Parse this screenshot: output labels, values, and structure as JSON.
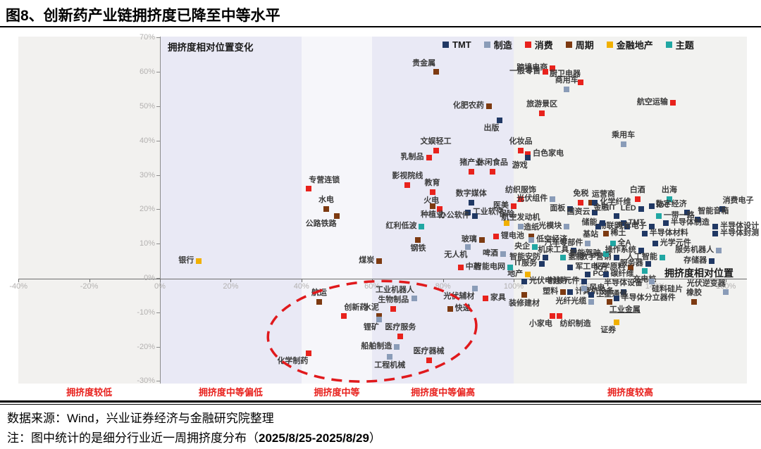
{
  "title": "图8、创新药产业链拥挤度已降至中等水平",
  "footer": {
    "source": "数据来源：Wind，兴业证券经济与金融研究院整理",
    "note_prefix": "注：图中统计的是细分行业近一周拥挤度分布（",
    "note_date": "2025/8/25-2025/8/29",
    "note_suffix": "）"
  },
  "chart_data": {
    "type": "scatter",
    "title": "创新药产业链拥挤度已降至中等水平",
    "xlabel": "拥挤度相对位置",
    "ylabel": "拥挤度相对位置变化",
    "xlim": [
      -42,
      170
    ],
    "ylim": [
      -31,
      70
    ],
    "x_ticks": [
      -40,
      -20,
      0,
      20,
      40,
      60,
      80,
      100,
      120,
      140,
      160
    ],
    "y_ticks": [
      70,
      60,
      50,
      40,
      30,
      20,
      10,
      0,
      -10,
      -20,
      -30
    ],
    "legend_position": "top-right",
    "categories": [
      {
        "key": "tmt",
        "label": "TMT",
        "color": "#203864"
      },
      {
        "key": "mfg",
        "label": "制造",
        "color": "#8a9cb8"
      },
      {
        "key": "cons",
        "label": "消费",
        "color": "#e8221c"
      },
      {
        "key": "cyc",
        "label": "周期",
        "color": "#7d3a11"
      },
      {
        "key": "fin",
        "label": "金融地产",
        "color": "#f1b000"
      },
      {
        "key": "theme",
        "label": "主题",
        "color": "#21a7a3"
      }
    ],
    "zones": [
      {
        "label": "拥挤度较低",
        "from": -40,
        "to": 0,
        "bg": "#f2f1ef"
      },
      {
        "label": "拥挤度中等偏低",
        "from": 0,
        "to": 40,
        "bg": "#e9e9f5"
      },
      {
        "label": "拥挤度中等",
        "from": 40,
        "to": 60,
        "bg": "#f6f6fa"
      },
      {
        "label": "拥挤度中等偏高",
        "from": 60,
        "to": 100,
        "bg": "#e9e9f5"
      },
      {
        "label": "拥挤度较高",
        "from": 100,
        "to": 166,
        "bg": "#f2f2f0"
      }
    ],
    "highlight_ellipse": {
      "cx": 60,
      "cy": -15.5,
      "rx": 29.5,
      "ry": 14.5,
      "color": "#e0191c"
    },
    "points": [
      {
        "l": "贵金属",
        "c": "cyc",
        "x": 78,
        "y": 60,
        "p": "al"
      },
      {
        "l": "跨境电商",
        "c": "cons",
        "x": 111,
        "y": 61,
        "p": "l"
      },
      {
        "l": "一般零售",
        "c": "cons",
        "x": 109,
        "y": 60,
        "p": "l"
      },
      {
        "l": "商用车",
        "c": "mfg",
        "x": 115,
        "y": 55,
        "p": "a"
      },
      {
        "l": "厨卫电器",
        "c": "cons",
        "x": 119,
        "y": 57,
        "p": "al"
      },
      {
        "l": "旅游景区",
        "c": "cons",
        "x": 108,
        "y": 48,
        "p": "a"
      },
      {
        "l": "化肥农药",
        "c": "cyc",
        "x": 93,
        "y": 50,
        "p": "l"
      },
      {
        "l": "出版",
        "c": "tmt",
        "x": 96,
        "y": 46,
        "p": "bl"
      },
      {
        "l": "航空运输",
        "c": "cons",
        "x": 145,
        "y": 51,
        "p": "l"
      },
      {
        "l": "乘用车",
        "c": "mfg",
        "x": 131,
        "y": 39,
        "p": "a"
      },
      {
        "l": "文娱轻工",
        "c": "cons",
        "x": 78,
        "y": 37,
        "p": "a"
      },
      {
        "l": "乳制品",
        "c": "cons",
        "x": 76,
        "y": 35,
        "p": "l"
      },
      {
        "l": "化妆品",
        "c": "cons",
        "x": 102,
        "y": 37,
        "p": "a"
      },
      {
        "l": "白色家电",
        "c": "cons",
        "x": 104,
        "y": 36,
        "p": "r"
      },
      {
        "l": "游戏",
        "c": "tmt",
        "x": 104,
        "y": 35,
        "p": "bl"
      },
      {
        "l": "猪产业",
        "c": "cons",
        "x": 88,
        "y": 31,
        "p": "a"
      },
      {
        "l": "休闲食品",
        "c": "cons",
        "x": 94,
        "y": 31,
        "p": "a"
      },
      {
        "l": "影视院线",
        "c": "cons",
        "x": 70,
        "y": 27,
        "p": "a"
      },
      {
        "l": "专营连锁",
        "c": "cons",
        "x": 42,
        "y": 26,
        "p": "ar"
      },
      {
        "l": "水电",
        "c": "cyc",
        "x": 47,
        "y": 20,
        "p": "a"
      },
      {
        "l": "公路铁路",
        "c": "cyc",
        "x": 50,
        "y": 18,
        "p": "bl"
      },
      {
        "l": "教育",
        "c": "cons",
        "x": 77,
        "y": 25,
        "p": "a"
      },
      {
        "l": "数字媒体",
        "c": "tmt",
        "x": 88,
        "y": 22,
        "p": "a"
      },
      {
        "l": "火电",
        "c": "cons",
        "x": 79,
        "y": 20,
        "p": "al"
      },
      {
        "l": "种植业",
        "c": "cyc",
        "x": 77,
        "y": 21,
        "p": "b"
      },
      {
        "l": "红利低波",
        "c": "theme",
        "x": 74,
        "y": 15,
        "p": "l"
      },
      {
        "l": "纺织服饰",
        "c": "cons",
        "x": 102,
        "y": 23,
        "p": "a"
      },
      {
        "l": "医美",
        "c": "cons",
        "x": 100,
        "y": 21,
        "p": "l"
      },
      {
        "l": "光伏组件",
        "c": "mfg",
        "x": 111,
        "y": 23,
        "p": "l"
      },
      {
        "l": "免税",
        "c": "cons",
        "x": 119,
        "y": 22,
        "p": "a"
      },
      {
        "l": "运营商",
        "c": "cyc",
        "x": 122,
        "y": 22,
        "p": "ar"
      },
      {
        "l": "白酒",
        "c": "cons",
        "x": 135,
        "y": 23,
        "p": "a"
      },
      {
        "l": "出海",
        "c": "theme",
        "x": 144,
        "y": 23,
        "p": "a"
      },
      {
        "l": "消费电子",
        "c": "tmt",
        "x": 159,
        "y": 20,
        "p": "ar"
      },
      {
        "l": "化学纤维",
        "c": "tmt",
        "x": 123,
        "y": 22,
        "p": "r"
      },
      {
        "l": "面板",
        "c": "tmt",
        "x": 116,
        "y": 20,
        "p": "l"
      },
      {
        "l": "国资云",
        "c": "tmt",
        "x": 123,
        "y": 19,
        "p": "l"
      },
      {
        "l": "金融IT",
        "c": "tmt",
        "x": 129,
        "y": 18,
        "p": "al"
      },
      {
        "l": "LED",
        "c": "tmt",
        "x": 136,
        "y": 20,
        "p": "l"
      },
      {
        "l": "IDC",
        "c": "tmt",
        "x": 139,
        "y": 21,
        "p": "r"
      },
      {
        "l": "数字经济",
        "c": "tmt",
        "x": 149,
        "y": 19,
        "p": "al"
      },
      {
        "l": "智能音箱",
        "c": "tmt",
        "x": 152,
        "y": 17,
        "p": "ar"
      },
      {
        "l": "一带一路",
        "c": "theme",
        "x": 141,
        "y": 18,
        "p": "r"
      },
      {
        "l": "半导体制造",
        "c": "tmt",
        "x": 143,
        "y": 16,
        "p": "r"
      },
      {
        "l": "半导体设计",
        "c": "tmt",
        "x": 157,
        "y": 15,
        "p": "r"
      },
      {
        "l": "TMT",
        "c": "tmt",
        "x": 131,
        "y": 16,
        "p": "r"
      },
      {
        "l": "物联网",
        "c": "tmt",
        "x": 132,
        "y": 15,
        "p": "l"
      },
      {
        "l": "汽车电子",
        "c": "tmt",
        "x": 139,
        "y": 15,
        "p": "l"
      },
      {
        "l": "半导体材料",
        "c": "tmt",
        "x": 137,
        "y": 13,
        "p": "r"
      },
      {
        "l": "光学元件",
        "c": "tmt",
        "x": 140,
        "y": 10,
        "p": "r"
      },
      {
        "l": "全A",
        "c": "theme",
        "x": 128,
        "y": 10,
        "p": "r"
      },
      {
        "l": "稀土",
        "c": "cyc",
        "x": 126,
        "y": 13,
        "p": "r"
      },
      {
        "l": "基站",
        "c": "tmt",
        "x": 124,
        "y": 15,
        "p": "bl"
      },
      {
        "l": "储能",
        "c": "tmt",
        "x": 125,
        "y": 16,
        "p": "l"
      },
      {
        "l": "央企",
        "c": "theme",
        "x": 106,
        "y": 9,
        "p": "l"
      },
      {
        "l": "机床工具",
        "c": "tmt",
        "x": 117,
        "y": 8,
        "p": "l"
      },
      {
        "l": "智能安防",
        "c": "tmt",
        "x": 109,
        "y": 6,
        "p": "l"
      },
      {
        "l": "IT服务",
        "c": "tmt",
        "x": 108,
        "y": 4,
        "p": "l"
      },
      {
        "l": "军工电子",
        "c": "tmt",
        "x": 116,
        "y": 3,
        "p": "r"
      },
      {
        "l": "化学原料",
        "c": "cyc",
        "x": 133,
        "y": 3,
        "p": "l"
      },
      {
        "l": "服务器",
        "c": "tmt",
        "x": 138,
        "y": 4,
        "p": "l"
      },
      {
        "l": "数字营销",
        "c": "tmt",
        "x": 129,
        "y": 6,
        "p": "l"
      },
      {
        "l": "智能驾驶",
        "c": "theme",
        "x": 126,
        "y": 7,
        "p": "l"
      },
      {
        "l": "操作系统",
        "c": "tmt",
        "x": 136,
        "y": 8,
        "p": "l"
      },
      {
        "l": "人工智能",
        "c": "theme",
        "x": 142,
        "y": 6,
        "p": "l"
      },
      {
        "l": "氢能",
        "c": "theme",
        "x": 114,
        "y": 6,
        "p": "r"
      },
      {
        "l": "服务机器人",
        "c": "mfg",
        "x": 158,
        "y": 8,
        "p": "l"
      },
      {
        "l": "存储器",
        "c": "tmt",
        "x": 156,
        "y": 5,
        "p": "l"
      },
      {
        "l": "半导体封测",
        "c": "tmt",
        "x": 157,
        "y": 13,
        "p": "r"
      },
      {
        "l": "PCB",
        "c": "tmt",
        "x": 121,
        "y": 1,
        "p": "r"
      },
      {
        "l": "碳纤维",
        "c": "tmt",
        "x": 126,
        "y": 1,
        "p": "r"
      },
      {
        "l": "充电桩",
        "c": "theme",
        "x": 137,
        "y": 2,
        "p": "b"
      },
      {
        "l": "地产",
        "c": "fin",
        "x": 104,
        "y": 1,
        "p": "l"
      },
      {
        "l": "智能电网",
        "c": "theme",
        "x": 99,
        "y": 3,
        "p": "l"
      },
      {
        "l": "中药",
        "c": "cons",
        "x": 85,
        "y": 3,
        "p": "r"
      },
      {
        "l": "无人机",
        "c": "mfg",
        "x": 87,
        "y": 9,
        "p": "bl"
      },
      {
        "l": "玻璃",
        "c": "cyc",
        "x": 91,
        "y": 11,
        "p": "l"
      },
      {
        "l": "锂电池",
        "c": "cons",
        "x": 95,
        "y": 12,
        "p": "r"
      },
      {
        "l": "啤酒",
        "c": "mfg",
        "x": 97,
        "y": 7,
        "p": "l"
      },
      {
        "l": "钢铁",
        "c": "cyc",
        "x": 73,
        "y": 11,
        "p": "b"
      },
      {
        "l": "煤炭",
        "c": "cyc",
        "x": 62,
        "y": 5,
        "p": "l"
      },
      {
        "l": "银行",
        "c": "fin",
        "x": 11,
        "y": 5,
        "p": "l"
      },
      {
        "l": "保险",
        "c": "fin",
        "x": 98,
        "y": 16,
        "p": "a"
      },
      {
        "l": "工业软件",
        "c": "tmt",
        "x": 87,
        "y": 19,
        "p": "r"
      },
      {
        "l": "办公软件",
        "c": "tmt",
        "x": 89,
        "y": 18,
        "p": "l"
      },
      {
        "l": "航空发动机",
        "c": "mfg",
        "x": 102,
        "y": 15,
        "p": "a"
      },
      {
        "l": "造纸",
        "c": "cyc",
        "x": 105,
        "y": 12,
        "p": "a"
      },
      {
        "l": "光模块",
        "c": "mfg",
        "x": 115,
        "y": 15,
        "p": "l"
      },
      {
        "l": "低空经济",
        "c": "mfg",
        "x": 105,
        "y": 11,
        "p": "r"
      },
      {
        "l": "汽车零部件",
        "c": "mfg",
        "x": 121,
        "y": 10,
        "p": "l"
      },
      {
        "l": "光伏电池片",
        "c": "tmt",
        "x": 103,
        "y": -1,
        "p": "r"
      },
      {
        "l": "射频元件",
        "c": "tmt",
        "x": 120,
        "y": -1,
        "p": "l"
      },
      {
        "l": "塑料",
        "c": "cyc",
        "x": 114,
        "y": -4,
        "p": "l"
      },
      {
        "l": "计算机设备",
        "c": "tmt",
        "x": 116,
        "y": -4,
        "p": "r"
      },
      {
        "l": "风电",
        "c": "mfg",
        "x": 120,
        "y": -3,
        "p": "r"
      },
      {
        "l": "半导体设备",
        "c": "tmt",
        "x": 131,
        "y": -4,
        "p": "a"
      },
      {
        "l": "卫星通信",
        "c": "tmt",
        "x": 122,
        "y": -5,
        "p": "r"
      },
      {
        "l": "硅料硅片",
        "c": "mfg",
        "x": 139,
        "y": -1,
        "p": "br"
      },
      {
        "l": "半导体分立器件",
        "c": "tmt",
        "x": 129,
        "y": -6,
        "p": "r"
      },
      {
        "l": "工业金属",
        "c": "cyc",
        "x": 127,
        "y": -7,
        "p": "br",
        "u": true
      },
      {
        "l": "光纤光缆",
        "c": "mfg",
        "x": 122,
        "y": -7,
        "p": "l"
      },
      {
        "l": "装修建材",
        "c": "cyc",
        "x": 103,
        "y": -5,
        "p": "b"
      },
      {
        "l": "光伏逆变器",
        "c": "mfg",
        "x": 160,
        "y": -4,
        "p": "al"
      },
      {
        "l": "橡胶",
        "c": "cyc",
        "x": 151,
        "y": -7,
        "p": "a"
      },
      {
        "l": "小家电",
        "c": "cons",
        "x": 111,
        "y": -11,
        "p": "bl"
      },
      {
        "l": "纺织制造",
        "c": "cons",
        "x": 113,
        "y": -11,
        "p": "br"
      },
      {
        "l": "证券",
        "c": "fin",
        "x": 129,
        "y": -13,
        "p": "bl"
      },
      {
        "l": "家具",
        "c": "cons",
        "x": 92,
        "y": -6,
        "p": "r"
      },
      {
        "l": "光伏辅材",
        "c": "mfg",
        "x": 89,
        "y": -3,
        "p": "bl"
      },
      {
        "l": "快递",
        "c": "cyc",
        "x": 82,
        "y": -9,
        "p": "r"
      },
      {
        "l": "航运",
        "c": "cyc",
        "x": 45,
        "y": -7,
        "p": "a"
      },
      {
        "l": "创新药",
        "c": "cons",
        "x": 52,
        "y": -11,
        "p": "ar"
      },
      {
        "l": "工业机器人",
        "c": "mfg",
        "x": 72,
        "y": -6,
        "p": "al"
      },
      {
        "l": "生物制品",
        "c": "cons",
        "x": 66,
        "y": -9,
        "p": "a"
      },
      {
        "l": "水泥",
        "c": "cyc",
        "x": 62,
        "y": -11,
        "p": "al"
      },
      {
        "l": "锂矿",
        "c": "mfg",
        "x": 62,
        "y": -12,
        "p": "bl"
      },
      {
        "l": "医疗服务",
        "c": "cons",
        "x": 68,
        "y": -17,
        "p": "a"
      },
      {
        "l": "船舶制造",
        "c": "mfg",
        "x": 67,
        "y": -20,
        "p": "l"
      },
      {
        "l": "工程机械",
        "c": "mfg",
        "x": 65,
        "y": -23,
        "p": "b"
      },
      {
        "l": "医疗器械",
        "c": "cons",
        "x": 76,
        "y": -24,
        "p": "a"
      },
      {
        "l": "化学制药",
        "c": "cons",
        "x": 42,
        "y": -22,
        "p": "bl"
      }
    ]
  }
}
